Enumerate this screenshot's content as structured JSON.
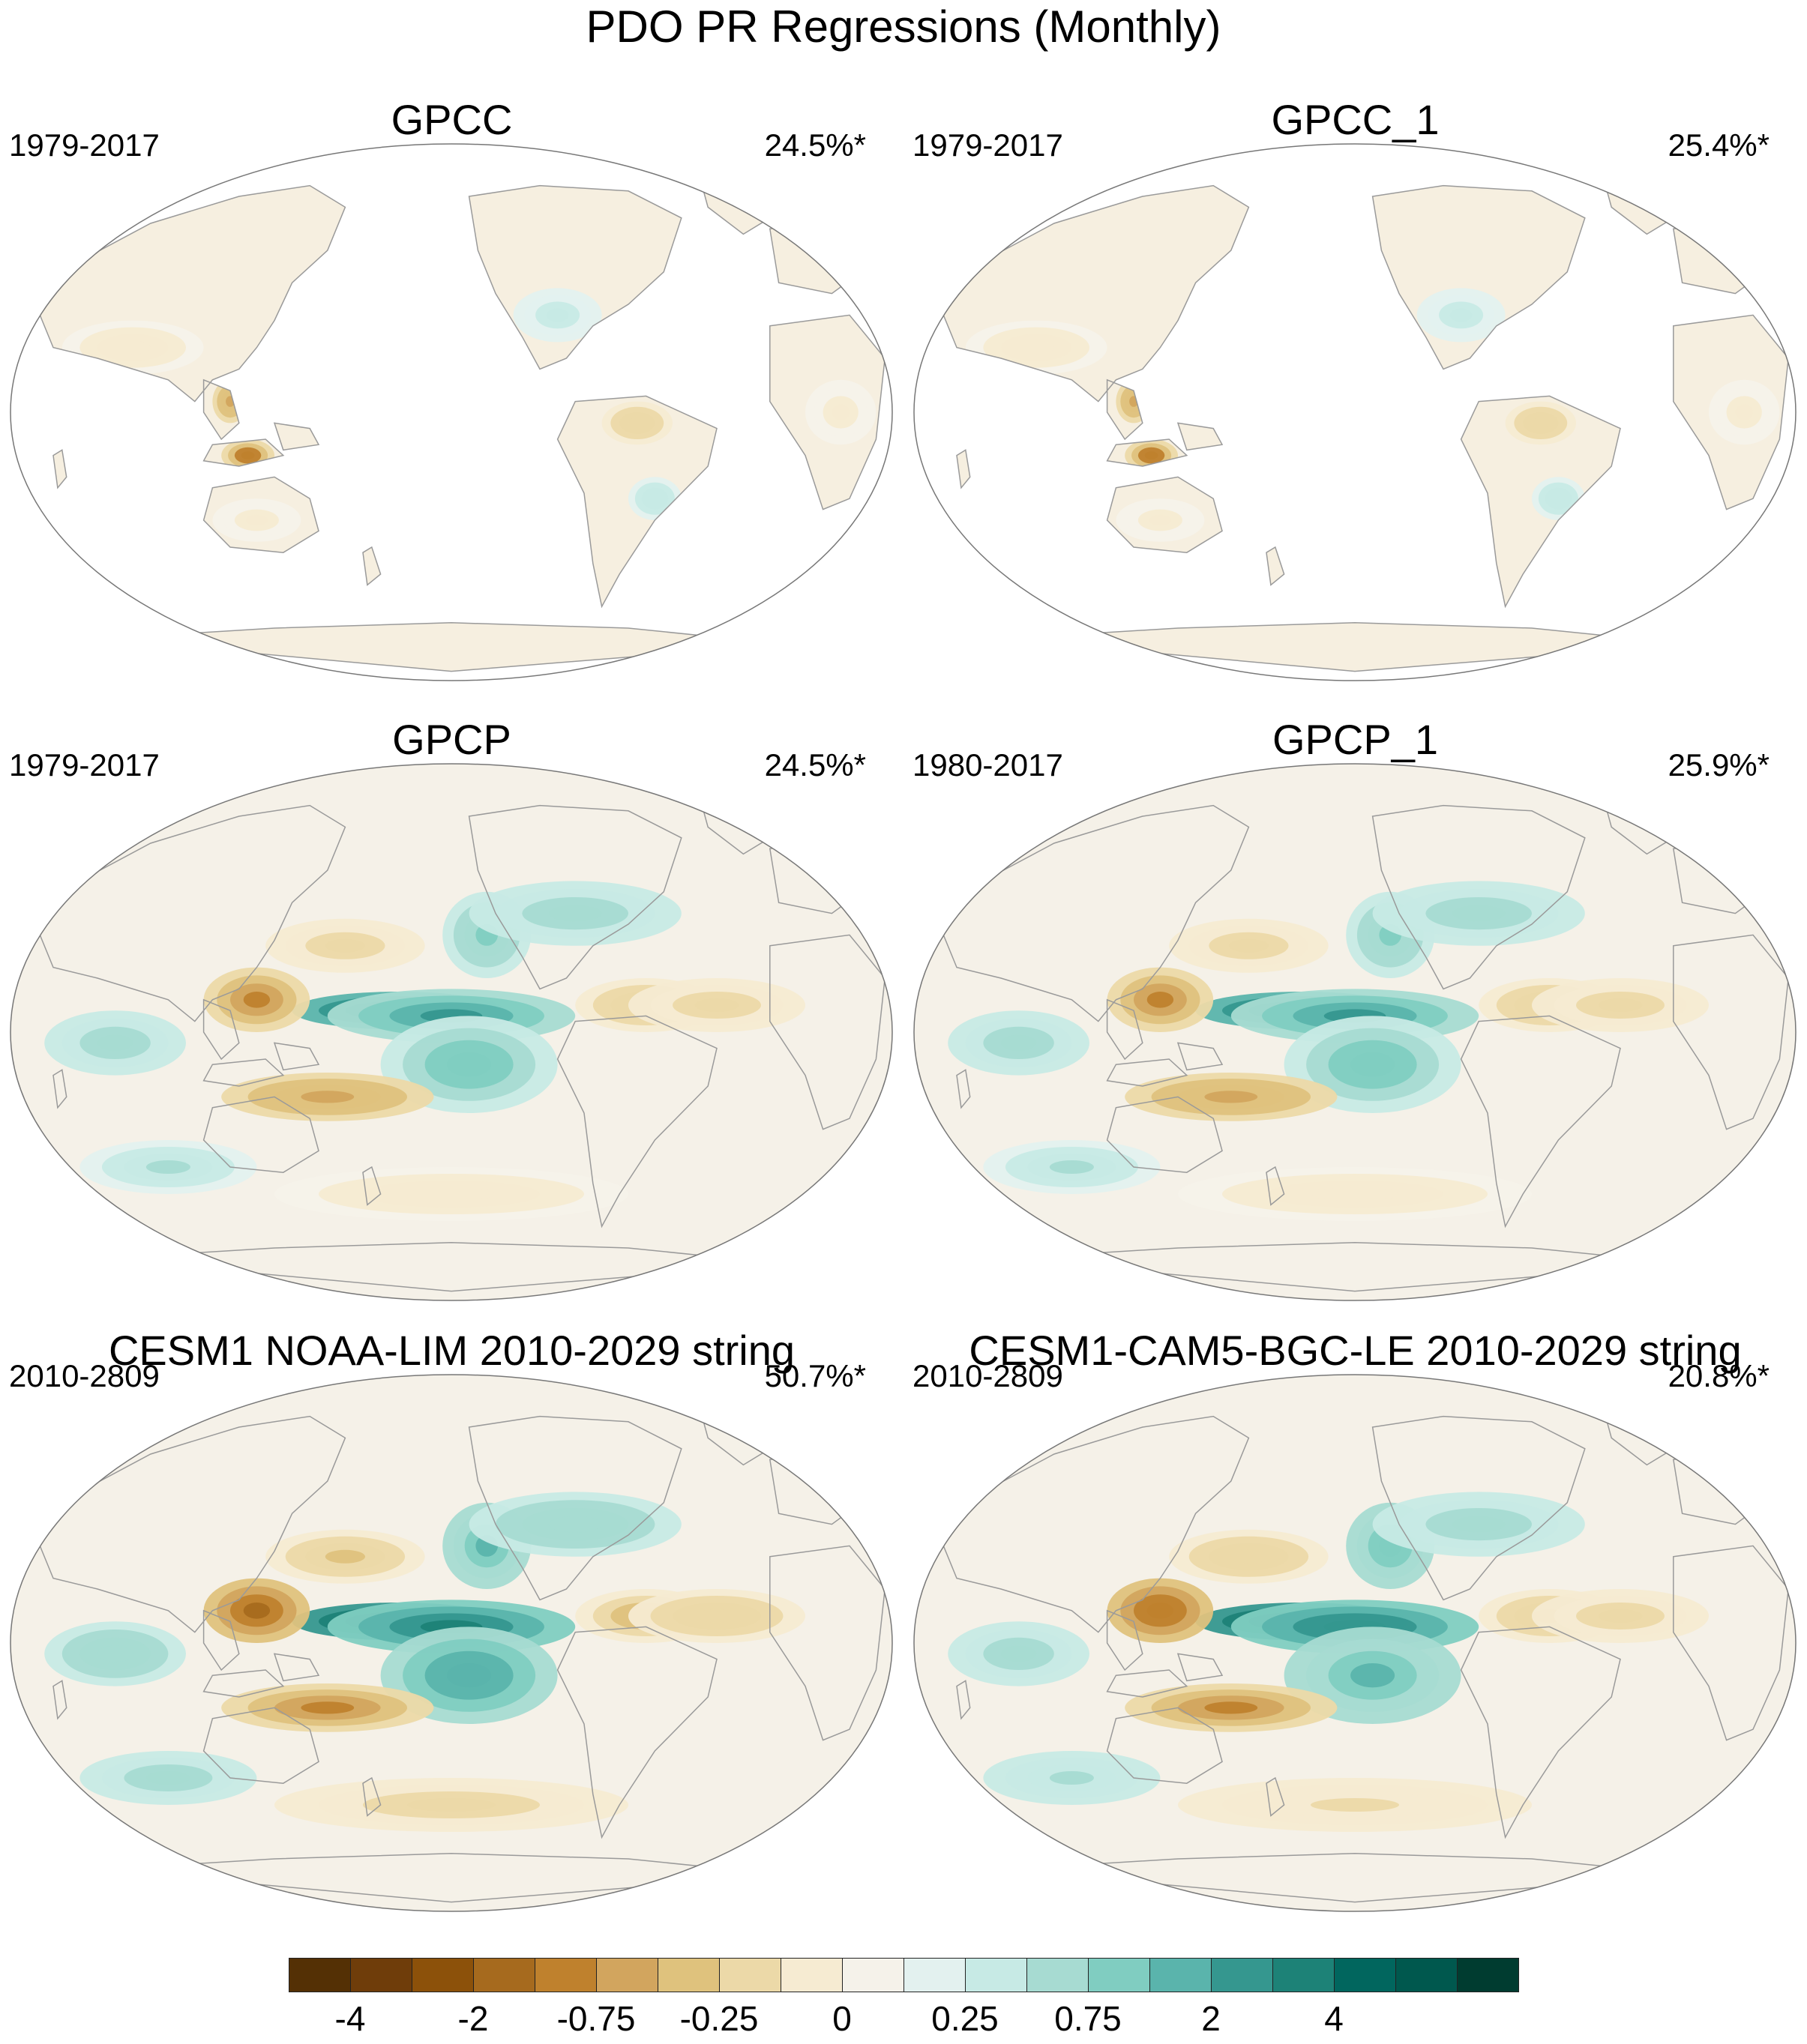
{
  "figure": {
    "title": "PDO PR Regressions (Monthly)"
  },
  "panels": [
    {
      "title": "GPCC",
      "years": "1979-2017",
      "percent": "24.5%*",
      "style": "land-only",
      "strength": 0.6
    },
    {
      "title": "GPCC_1",
      "years": "1979-2017",
      "percent": "25.4%*",
      "style": "land-only",
      "strength": 0.6
    },
    {
      "title": "GPCP",
      "years": "1979-2017",
      "percent": "24.5%*",
      "style": "global",
      "strength": 1.0
    },
    {
      "title": "GPCP_1",
      "years": "1980-2017",
      "percent": "25.9%*",
      "style": "global",
      "strength": 1.0
    },
    {
      "title": "CESM1 NOAA-LIM 2010-2029 string",
      "years": "2010-2809",
      "percent": "50.7%*",
      "style": "global",
      "strength": 1.4
    },
    {
      "title": "CESM1-CAM5-BGC-LE 2010-2029 string",
      "years": "2010-2809",
      "percent": "20.8%*",
      "style": "global",
      "strength": 1.2
    }
  ],
  "colorbar": {
    "colors": [
      "#543005",
      "#6f3d0a",
      "#8c510a",
      "#a66a1e",
      "#bf812d",
      "#d2a55e",
      "#dfc27d",
      "#ecd9a8",
      "#f6ebd2",
      "#f5f2ea",
      "#e3f1ef",
      "#c7eae5",
      "#a7dbd2",
      "#80cdc1",
      "#5ab4ac",
      "#35978f",
      "#1d8277",
      "#01665e",
      "#00584e",
      "#003c30"
    ],
    "labels": [
      "-4",
      "-2",
      "-0.75",
      "-0.25",
      "0",
      "0.25",
      "0.75",
      "2",
      "4"
    ]
  }
}
